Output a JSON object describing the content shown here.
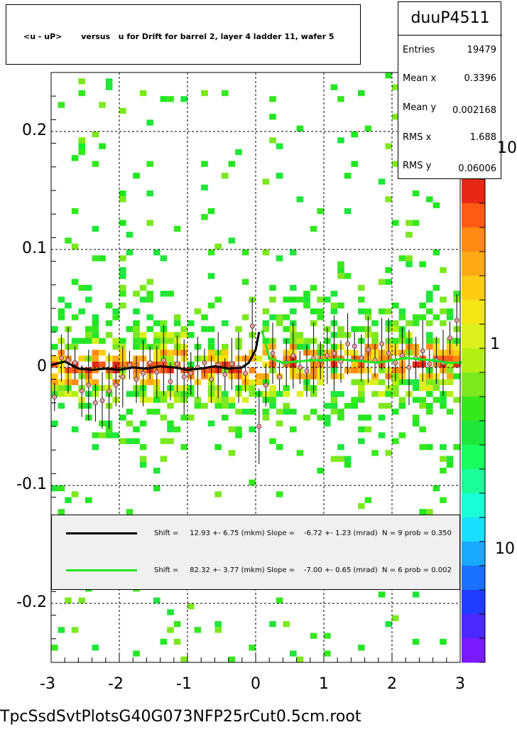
{
  "chart_data": {
    "type": "scatter",
    "title": "<u - uP>       versus   u for Drift for barrel 2, layer 4 ladder 11, wafer 5",
    "xlabel": "",
    "ylabel": "",
    "xlim": [
      -3,
      3
    ],
    "ylim": [
      -0.25,
      0.25
    ],
    "x_ticks": [
      "-3",
      "-2",
      "-1",
      "0",
      "1",
      "2",
      "3"
    ],
    "y_ticks": [
      "-0.2",
      "-0.1",
      "0",
      "0.1",
      "0.2"
    ],
    "x_tick_values": [
      -3,
      -2,
      -1,
      0,
      1,
      2,
      3
    ],
    "y_tick_values": [
      -0.2,
      -0.1,
      0,
      0.1,
      0.2
    ],
    "grid": true,
    "palette_labels": [
      "10",
      "1",
      "10"
    ],
    "palette_colors": [
      "#7a1aff",
      "#4a28ff",
      "#1f3dff",
      "#1a70ff",
      "#18a8ff",
      "#1ae0ff",
      "#1affd8",
      "#1aff9a",
      "#1aff60",
      "#1ee63a",
      "#35e81e",
      "#7ce81e",
      "#b4ef14",
      "#dcf01e",
      "#f4e614",
      "#ffcc14",
      "#ffaa14",
      "#ff8a14",
      "#ff5a14",
      "#e62814"
    ],
    "fit_black": {
      "x": [
        -3.0,
        -2.8,
        -2.6,
        -2.4,
        -2.2,
        -2.0,
        -1.8,
        -1.6,
        -1.4,
        -1.2,
        -1.0,
        -0.8,
        -0.6,
        -0.4,
        -0.2,
        -0.1,
        0.0,
        0.05
      ],
      "y": [
        0.002,
        0.005,
        -0.001,
        -0.002,
        -0.001,
        -0.002,
        0.0,
        -0.001,
        0.001,
        0.0,
        -0.002,
        -0.001,
        0.001,
        -0.001,
        0.0,
        0.004,
        0.015,
        0.03
      ]
    },
    "fit_green": {
      "x": [
        0.1,
        0.2,
        0.4,
        0.6,
        0.8,
        1.0,
        1.2,
        1.4,
        1.6,
        1.8,
        2.0,
        2.2,
        2.4,
        2.6,
        2.8,
        3.0
      ],
      "y": [
        0.03,
        0.008,
        0.004,
        0.005,
        0.006,
        0.006,
        0.007,
        0.006,
        0.005,
        0.004,
        0.006,
        0.008,
        0.007,
        0.006,
        0.004,
        0.004
      ]
    },
    "profile_points": {
      "x": [
        -2.95,
        -2.85,
        -2.75,
        -2.65,
        -2.55,
        -2.45,
        -2.35,
        -2.25,
        -2.15,
        -2.05,
        -1.95,
        -1.85,
        -1.75,
        -1.65,
        -1.55,
        -1.45,
        -1.35,
        -1.25,
        -1.15,
        -1.05,
        -0.95,
        -0.85,
        -0.75,
        -0.65,
        -0.55,
        -0.45,
        -0.35,
        -0.25,
        -0.15,
        -0.05,
        0.05,
        0.15,
        0.25,
        0.35,
        0.45,
        0.55,
        0.65,
        0.75,
        0.85,
        0.95,
        1.05,
        1.15,
        1.25,
        1.35,
        1.45,
        1.55,
        1.65,
        1.75,
        1.85,
        1.95,
        2.05,
        2.15,
        2.25,
        2.35,
        2.45,
        2.55,
        2.65,
        2.75,
        2.85,
        2.95
      ],
      "y": [
        -0.025,
        0.008,
        0.006,
        0.004,
        -0.02,
        -0.015,
        -0.03,
        -0.028,
        -0.02,
        -0.015,
        -0.008,
        0.002,
        -0.01,
        -0.005,
        0.004,
        -0.004,
        0.006,
        -0.012,
        0.003,
        -0.008,
        -0.005,
        0.0,
        0.004,
        -0.01,
        0.002,
        -0.006,
        0.003,
        0.0,
        -0.005,
        0.035,
        -0.05,
        -0.015,
        0.012,
        -0.008,
        0.004,
        0.01,
        0.0,
        -0.003,
        0.008,
        0.006,
        0.01,
        0.012,
        0.005,
        0.02,
        0.018,
        0.008,
        0.015,
        0.006,
        0.02,
        0.012,
        0.004,
        0.01,
        0.0,
        0.008,
        0.014,
        0.003,
        0.006,
        0.004,
        0.025,
        0.04
      ]
    },
    "legend": [
      {
        "text": "Shift =     12.93 +- 6.75 (mkm) Slope =    -6.72 +- 1.23 (mrad)  N = 9 prob = 0.350",
        "color": "#000000"
      },
      {
        "text": "Shift =     82.32 +- 3.77 (mkm) Slope =    -7.00 +- 0.65 (mrad)  N = 6 prob = 0.002",
        "color": "#22e622"
      }
    ]
  },
  "stats": {
    "name": "duuP4511",
    "rows": [
      {
        "label": "Entries",
        "value": "19479"
      },
      {
        "label": "Mean x",
        "value": "0.3396"
      },
      {
        "label": "Mean y",
        "value": "0.002168"
      },
      {
        "label": "RMS x",
        "value": "1.688"
      },
      {
        "label": "RMS y",
        "value": "0.06006"
      }
    ]
  },
  "footer": "TpcSsdSvtPlotsG40G073NFP25rCut0.5cm.root"
}
